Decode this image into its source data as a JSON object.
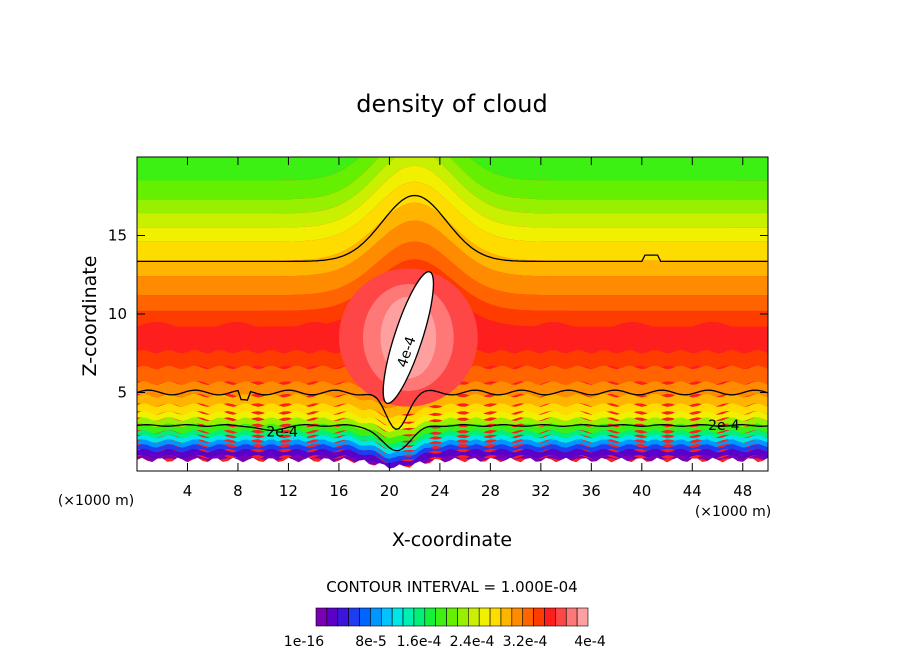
{
  "chart_data": {
    "type": "heatmap",
    "title": "density of cloud",
    "xlabel": "X-coordinate",
    "ylabel": "Z-coordinate",
    "x_unit": "(×1000 m)",
    "y_unit": "(×1000 m)",
    "xlim": [
      0,
      50
    ],
    "ylim": [
      0,
      20
    ],
    "xticks": [
      4,
      8,
      12,
      16,
      20,
      24,
      28,
      32,
      36,
      40,
      44,
      48
    ],
    "yticks": [
      5,
      10,
      15
    ],
    "contour_interval": "CONTOUR INTERVAL = 1.000E-04",
    "colorbar": {
      "labels": [
        "1e-16",
        "8e-5",
        "1.6e-4",
        "2.4e-4",
        "3.2e-4",
        "4e-4"
      ],
      "min": 0,
      "max": 0.0004,
      "colors": [
        "#7a00b4",
        "#5a00c8",
        "#3c14dc",
        "#1e3cf0",
        "#0064ff",
        "#0096ff",
        "#00c3ff",
        "#00e6e6",
        "#00f0b4",
        "#00f078",
        "#14f03c",
        "#3cf014",
        "#64f000",
        "#96f000",
        "#c8f000",
        "#f0f000",
        "#ffdc00",
        "#ffb400",
        "#ff8c00",
        "#ff6400",
        "#ff3c00",
        "#ff1e1e",
        "#ff4646",
        "#ff7878",
        "#ffa0a0"
      ]
    },
    "contour_labels": [
      "2e-4",
      "2e-4",
      "4e-4"
    ],
    "field_description_levels": {
      "upper_band_z": [
        13.3,
        17.5
      ],
      "core_max": 0.0004,
      "core_center": [
        21.5,
        8.5
      ]
    }
  }
}
